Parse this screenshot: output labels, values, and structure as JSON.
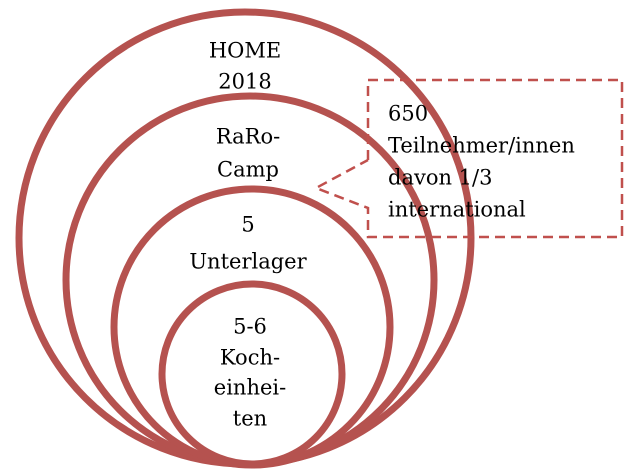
{
  "circles": [
    {
      "lines": [
        "HOME",
        "2018"
      ]
    },
    {
      "lines": [
        "RaRo-",
        "Camp"
      ]
    },
    {
      "lines": [
        "5",
        "Unterlager"
      ]
    },
    {
      "lines": [
        "5-6",
        "Koch-",
        "einhei-",
        "ten"
      ]
    }
  ],
  "callout": {
    "lines": [
      "650",
      "Teilnehmer/innen",
      "davon 1/3",
      "international"
    ]
  }
}
